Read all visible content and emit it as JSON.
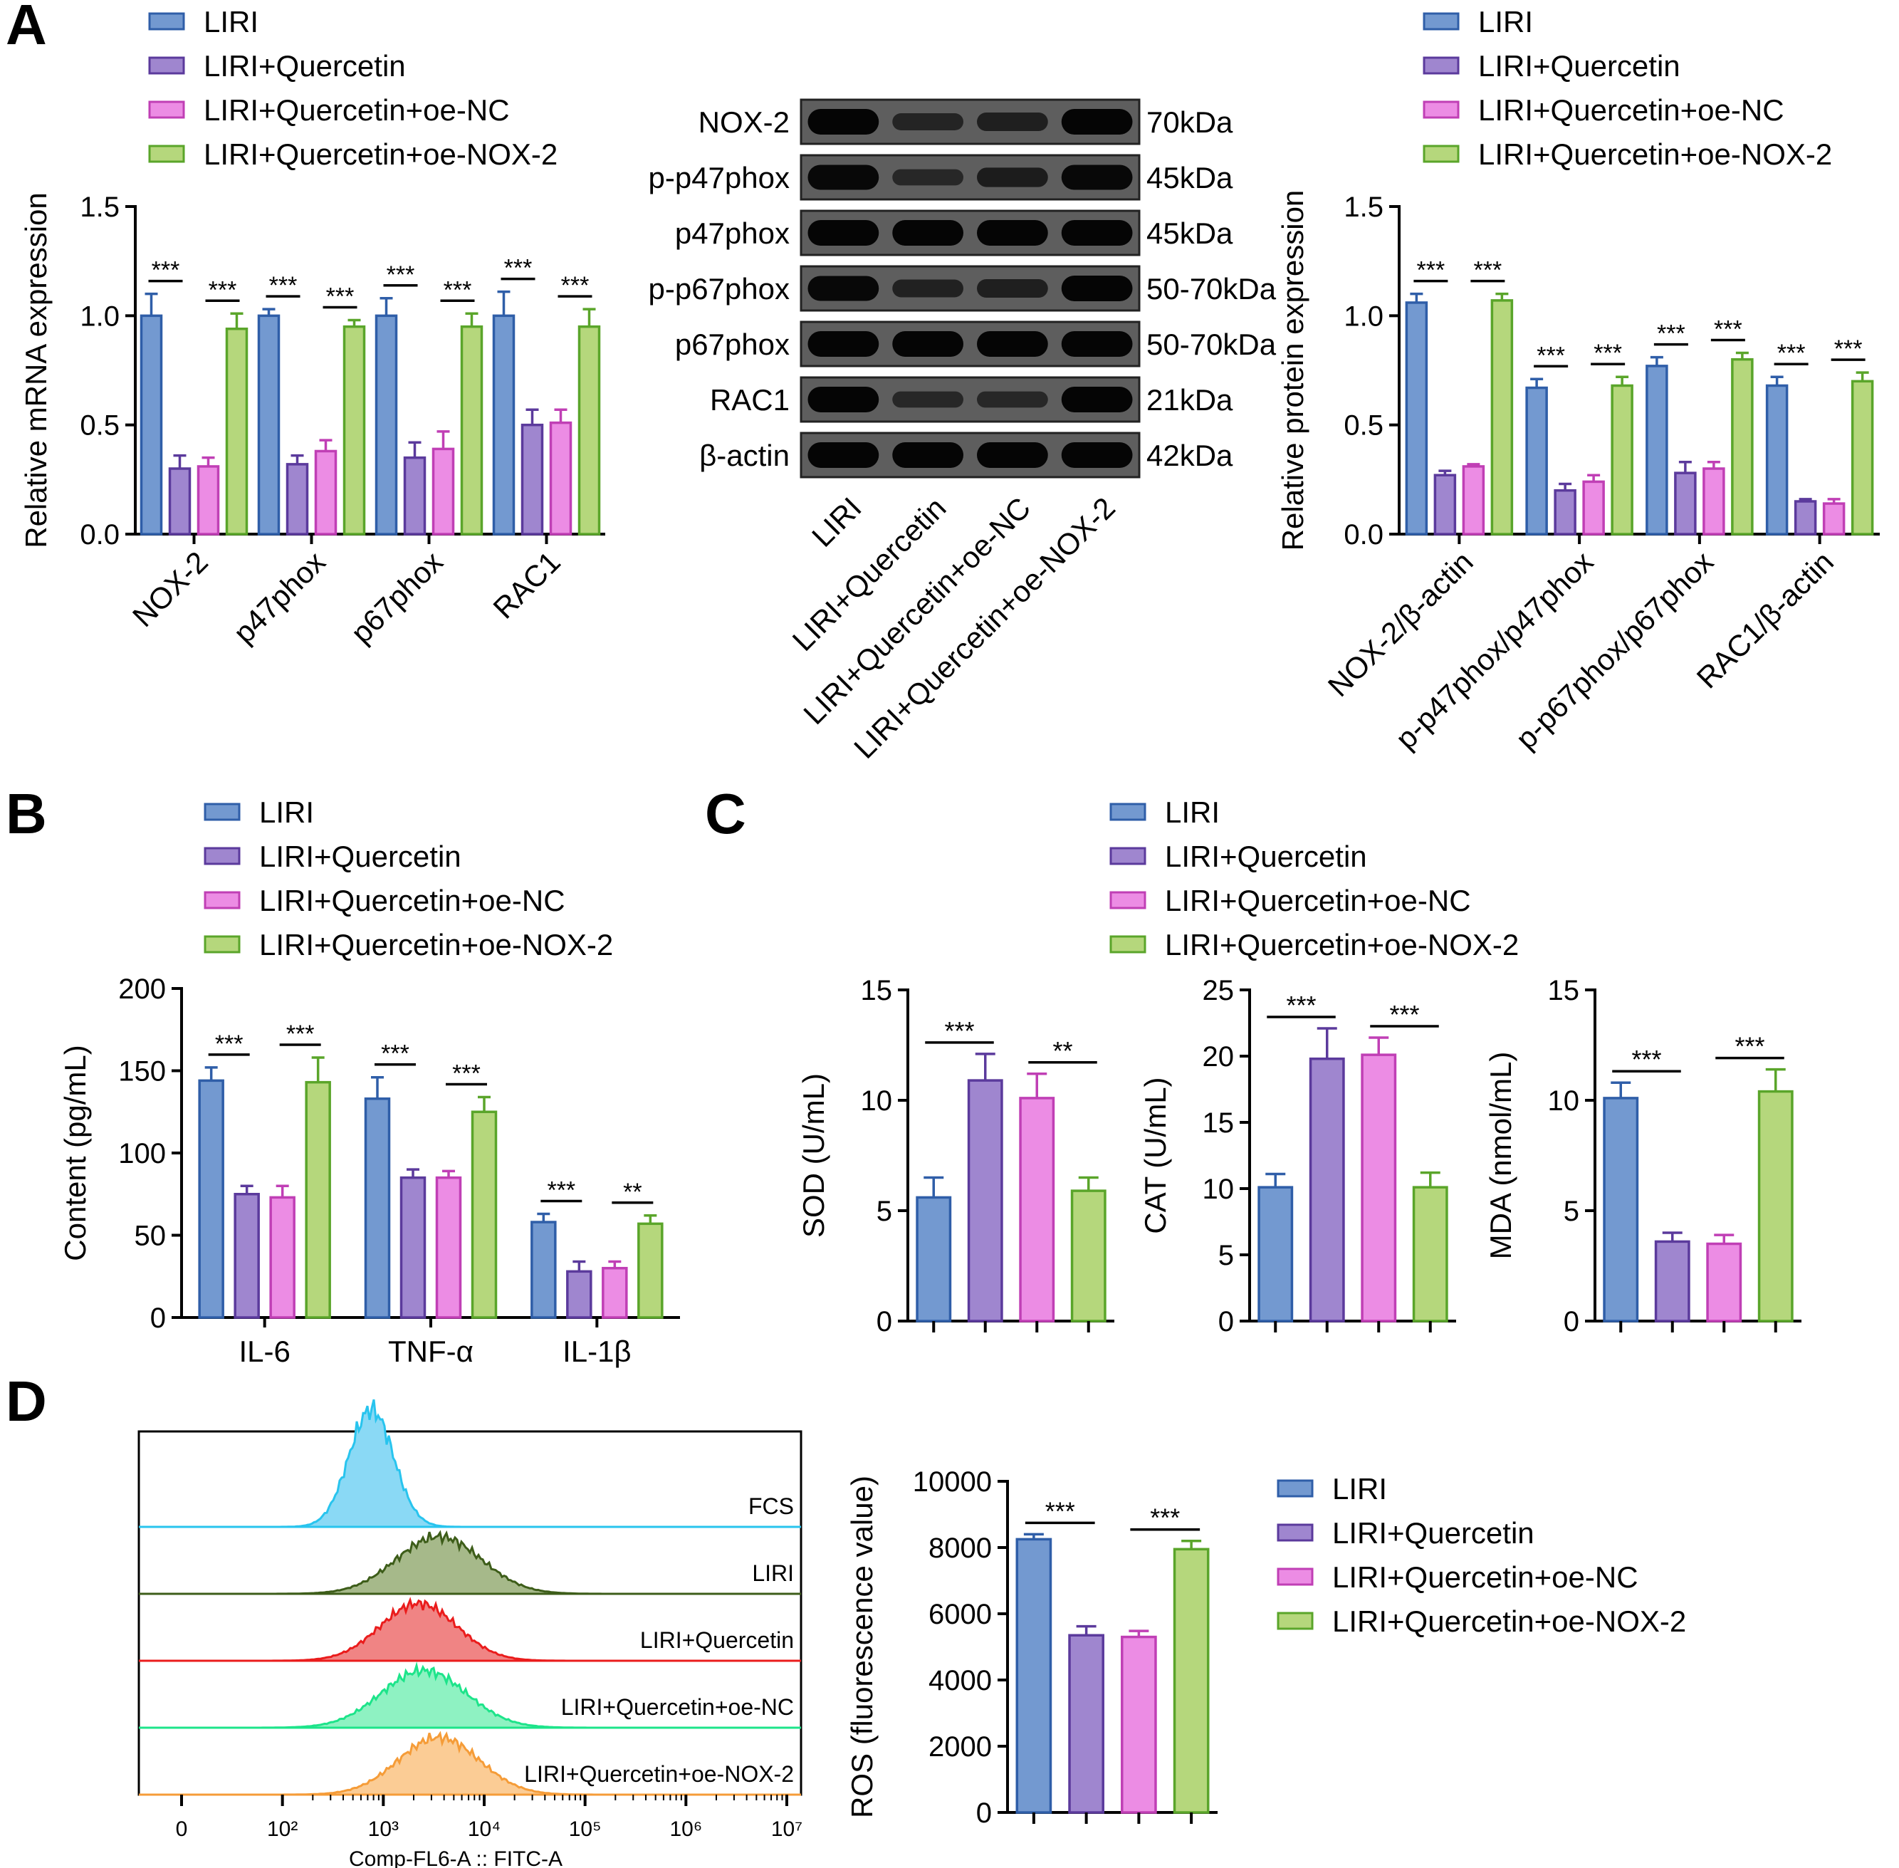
{
  "panels": {
    "A": "A",
    "B": "B",
    "C": "C",
    "D": "D"
  },
  "groups": [
    "LIRI",
    "LIRI+Quercetin",
    "LIRI+Quercetin+oe-NC",
    "LIRI+Quercetin+oe-NOX-2"
  ],
  "colors": {
    "fill": [
      "#7399d0",
      "#9f86cf",
      "#ec8ce4",
      "#b5d77c"
    ],
    "stroke": [
      "#2f5ea8",
      "#5b3a9c",
      "#c03fb5",
      "#5aa52a"
    ]
  },
  "significance": {
    "three": "***",
    "two": "**"
  },
  "blot": {
    "proteins": [
      "NOX-2",
      "p-p47phox",
      "p47phox",
      "p-p67phox",
      "p67phox",
      "RAC1",
      "β-actin"
    ],
    "sizes": [
      "70kDa",
      "45kDa",
      "45kDa",
      "50-70kDa",
      "50-70kDa",
      "21kDa",
      "42kDa"
    ],
    "intensity": [
      [
        1.0,
        0.45,
        0.55,
        1.0
      ],
      [
        0.95,
        0.4,
        0.6,
        0.95
      ],
      [
        1.0,
        1.0,
        1.0,
        1.0
      ],
      [
        0.95,
        0.5,
        0.55,
        1.0
      ],
      [
        1.0,
        1.0,
        1.0,
        1.0
      ],
      [
        1.0,
        0.4,
        0.4,
        1.0
      ],
      [
        1.0,
        1.0,
        1.0,
        1.0
      ]
    ],
    "lanes": [
      "LIRI",
      "LIRI+Quercetin",
      "LIRI+Quercetin+oe-NC",
      "LIRI+Quercetin+oe-NOX-2"
    ]
  },
  "flow": {
    "xlabel": "Comp-FL6-A :: FITC-A",
    "tick_labels": [
      "0",
      "10²",
      "10³",
      "10⁴",
      "10⁵",
      "10⁶",
      "10⁷"
    ],
    "tracks": [
      {
        "label": "FCS",
        "color": "#28c4ee",
        "fill": "#8ad9f5",
        "mode": 2.88,
        "spread": 0.22
      },
      {
        "label": "LIRI",
        "color": "#3d5d19",
        "fill": "#a6b98a",
        "mode": 3.55,
        "spread": 0.42
      },
      {
        "label": "LIRI+Quercetin",
        "color": "#ea1c1c",
        "fill": "#f08484",
        "mode": 3.35,
        "spread": 0.38
      },
      {
        "label": "LIRI+Quercetin+oe-NC",
        "color": "#1de48a",
        "fill": "#8ef2c2",
        "mode": 3.4,
        "spread": 0.42
      },
      {
        "label": "LIRI+Quercetin+oe-NOX-2",
        "color": "#f59c38",
        "fill": "#fbcc95",
        "mode": 3.55,
        "spread": 0.4
      }
    ]
  },
  "chart_data": [
    {
      "type": "bar",
      "panel": "A",
      "ylabel": "Relative mRNA expression",
      "categories": [
        "NOX-2",
        "p47phox",
        "p67phox",
        "RAC1"
      ],
      "ylim": [
        0,
        1.5
      ],
      "yticks": [
        0.0,
        0.5,
        1.0,
        1.5
      ],
      "ytick_labels": [
        "0.0",
        "0.5",
        "1.0",
        "1.5"
      ],
      "series": [
        {
          "name": "LIRI",
          "values": [
            1.0,
            1.0,
            1.0,
            1.0
          ],
          "errors": [
            0.1,
            0.03,
            0.08,
            0.11
          ]
        },
        {
          "name": "LIRI+Quercetin",
          "values": [
            0.3,
            0.32,
            0.35,
            0.5
          ],
          "errors": [
            0.06,
            0.04,
            0.07,
            0.07
          ]
        },
        {
          "name": "LIRI+Quercetin+oe-NC",
          "values": [
            0.31,
            0.38,
            0.39,
            0.51
          ],
          "errors": [
            0.04,
            0.05,
            0.08,
            0.06
          ]
        },
        {
          "name": "LIRI+Quercetin+oe-NOX-2",
          "values": [
            0.94,
            0.95,
            0.95,
            0.95
          ],
          "errors": [
            0.07,
            0.03,
            0.06,
            0.08
          ]
        }
      ],
      "annotations": [
        {
          "category": 0,
          "from": 0,
          "to": 1,
          "text": "***"
        },
        {
          "category": 0,
          "from": 2,
          "to": 3,
          "text": "***"
        },
        {
          "category": 1,
          "from": 0,
          "to": 1,
          "text": "***"
        },
        {
          "category": 1,
          "from": 2,
          "to": 3,
          "text": "***"
        },
        {
          "category": 2,
          "from": 0,
          "to": 1,
          "text": "***"
        },
        {
          "category": 2,
          "from": 2,
          "to": 3,
          "text": "***"
        },
        {
          "category": 3,
          "from": 0,
          "to": 1,
          "text": "***"
        },
        {
          "category": 3,
          "from": 2,
          "to": 3,
          "text": "***"
        }
      ],
      "legend": "top-left"
    },
    {
      "type": "bar",
      "panel": "A",
      "ylabel": "Relative protein expression",
      "categories": [
        "NOX-2/β-actin",
        "p-p47phox/p47phox",
        "p-p67phox/p67phox",
        "RAC1/β-actin"
      ],
      "ylim": [
        0,
        1.5
      ],
      "yticks": [
        0.0,
        0.5,
        1.0,
        1.5
      ],
      "ytick_labels": [
        "0.0",
        "0.5",
        "1.0",
        "1.5"
      ],
      "series": [
        {
          "name": "LIRI",
          "values": [
            1.06,
            0.67,
            0.77,
            0.68
          ],
          "errors": [
            0.04,
            0.04,
            0.04,
            0.04
          ]
        },
        {
          "name": "LIRI+Quercetin",
          "values": [
            0.27,
            0.2,
            0.28,
            0.15
          ],
          "errors": [
            0.02,
            0.03,
            0.05,
            0.01
          ]
        },
        {
          "name": "LIRI+Quercetin+oe-NC",
          "values": [
            0.31,
            0.24,
            0.3,
            0.14
          ],
          "errors": [
            0.01,
            0.03,
            0.03,
            0.02
          ]
        },
        {
          "name": "LIRI+Quercetin+oe-NOX-2",
          "values": [
            1.07,
            0.68,
            0.8,
            0.7
          ],
          "errors": [
            0.03,
            0.04,
            0.03,
            0.04
          ]
        }
      ],
      "annotations": [
        {
          "category": 0,
          "from": 0,
          "to": 1,
          "text": "***"
        },
        {
          "category": 0,
          "from": 2,
          "to": 3,
          "text": "***"
        },
        {
          "category": 1,
          "from": 0,
          "to": 1,
          "text": "***"
        },
        {
          "category": 1,
          "from": 2,
          "to": 3,
          "text": "***"
        },
        {
          "category": 2,
          "from": 0,
          "to": 1,
          "text": "***"
        },
        {
          "category": 2,
          "from": 2,
          "to": 3,
          "text": "***"
        },
        {
          "category": 3,
          "from": 0,
          "to": 1,
          "text": "***"
        },
        {
          "category": 3,
          "from": 2,
          "to": 3,
          "text": "***"
        }
      ],
      "legend": "top-left"
    },
    {
      "type": "bar",
      "panel": "B",
      "ylabel": "Content (pg/mL)",
      "categories": [
        "IL-6",
        "TNF-α",
        "IL-1β"
      ],
      "ylim": [
        0,
        200
      ],
      "yticks": [
        0,
        50,
        100,
        150,
        200
      ],
      "ytick_labels": [
        "0",
        "50",
        "100",
        "150",
        "200"
      ],
      "series": [
        {
          "name": "LIRI",
          "values": [
            144,
            133,
            58
          ],
          "errors": [
            8,
            13,
            5
          ]
        },
        {
          "name": "LIRI+Quercetin",
          "values": [
            75,
            85,
            28
          ],
          "errors": [
            5,
            5,
            6
          ]
        },
        {
          "name": "LIRI+Quercetin+oe-NC",
          "values": [
            73,
            85,
            30
          ],
          "errors": [
            7,
            4,
            4
          ]
        },
        {
          "name": "LIRI+Quercetin+oe-NOX-2",
          "values": [
            143,
            125,
            57
          ],
          "errors": [
            15,
            9,
            5
          ]
        }
      ],
      "annotations": [
        {
          "category": 0,
          "from": 0,
          "to": 1,
          "text": "***"
        },
        {
          "category": 0,
          "from": 2,
          "to": 3,
          "text": "***"
        },
        {
          "category": 1,
          "from": 0,
          "to": 1,
          "text": "***"
        },
        {
          "category": 1,
          "from": 2,
          "to": 3,
          "text": "***"
        },
        {
          "category": 2,
          "from": 0,
          "to": 1,
          "text": "***"
        },
        {
          "category": 2,
          "from": 2,
          "to": 3,
          "text": "**"
        }
      ],
      "legend": "top-left"
    },
    {
      "type": "bar",
      "panel": "C",
      "ylabel": "SOD (U/mL)",
      "ylim": [
        0,
        15
      ],
      "yticks": [
        0,
        5,
        10,
        15
      ],
      "ytick_labels": [
        "0",
        "5",
        "10",
        "15"
      ],
      "values": [
        5.6,
        10.9,
        10.1,
        5.9
      ],
      "errors": [
        0.9,
        1.2,
        1.1,
        0.6
      ],
      "annotations": [
        {
          "from": 0,
          "to": 1,
          "text": "***"
        },
        {
          "from": 2,
          "to": 3,
          "text": "**"
        }
      ]
    },
    {
      "type": "bar",
      "panel": "C",
      "ylabel": "CAT (U/mL)",
      "ylim": [
        0,
        25
      ],
      "yticks": [
        0,
        5,
        10,
        15,
        20,
        25
      ],
      "ytick_labels": [
        "0",
        "5",
        "10",
        "15",
        "20",
        "25"
      ],
      "values": [
        10.1,
        19.8,
        20.1,
        10.1
      ],
      "errors": [
        1.0,
        2.3,
        1.3,
        1.1
      ],
      "annotations": [
        {
          "from": 0,
          "to": 1,
          "text": "***"
        },
        {
          "from": 2,
          "to": 3,
          "text": "***"
        }
      ]
    },
    {
      "type": "bar",
      "panel": "C",
      "ylabel": "MDA (nmol/mL)",
      "ylim": [
        0,
        15
      ],
      "yticks": [
        0,
        5,
        10,
        15
      ],
      "ytick_labels": [
        "0",
        "5",
        "10",
        "15"
      ],
      "values": [
        10.1,
        3.6,
        3.5,
        10.4
      ],
      "errors": [
        0.7,
        0.4,
        0.4,
        1.0
      ],
      "annotations": [
        {
          "from": 0,
          "to": 1,
          "text": "***"
        },
        {
          "from": 2,
          "to": 3,
          "text": "***"
        }
      ]
    },
    {
      "type": "bar",
      "panel": "D",
      "ylabel": "ROS (fluorescence value)",
      "ylim": [
        0,
        10000
      ],
      "yticks": [
        0,
        2000,
        4000,
        6000,
        8000,
        10000
      ],
      "ytick_labels": [
        "0",
        "2000",
        "4000",
        "6000",
        "8000",
        "10000"
      ],
      "values": [
        8250,
        5350,
        5300,
        7950
      ],
      "errors": [
        150,
        270,
        180,
        250
      ],
      "annotations": [
        {
          "from": 0,
          "to": 1,
          "text": "***"
        },
        {
          "from": 2,
          "to": 3,
          "text": "***"
        }
      ]
    }
  ]
}
